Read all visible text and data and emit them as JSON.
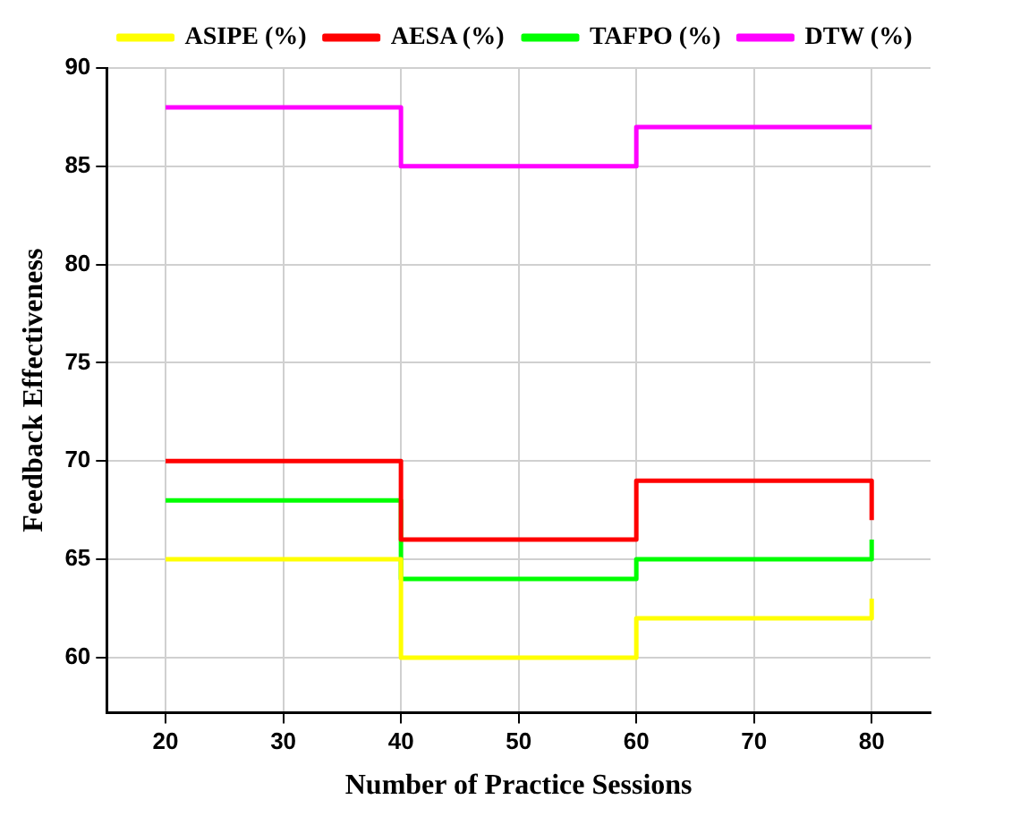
{
  "chart_data": {
    "type": "step",
    "xlabel": "Number of Practice Sessions",
    "ylabel": "Feedback Effectiveness",
    "x": [
      20,
      40,
      60,
      80
    ],
    "series": [
      {
        "name": "ASIPE (%)",
        "color": "#ffff00",
        "values": [
          65,
          60,
          62,
          63
        ]
      },
      {
        "name": "AESA (%)",
        "color": "#ff0000",
        "values": [
          70,
          66,
          69,
          67
        ]
      },
      {
        "name": "TAFPO (%)",
        "color": "#00ff00",
        "values": [
          68,
          64,
          65,
          66
        ]
      },
      {
        "name": "DTW (%)",
        "color": "#ff00ff",
        "values": [
          88,
          85,
          87,
          87
        ]
      }
    ],
    "xlim": [
      15,
      85
    ],
    "xticks": [
      20,
      30,
      40,
      50,
      60,
      70,
      80
    ],
    "ylim": [
      57.2,
      90
    ],
    "yticks": [
      60,
      65,
      70,
      75,
      80,
      85,
      90
    ],
    "grid": true,
    "legend": "top right",
    "marker": "none",
    "line_style": "solid"
  }
}
